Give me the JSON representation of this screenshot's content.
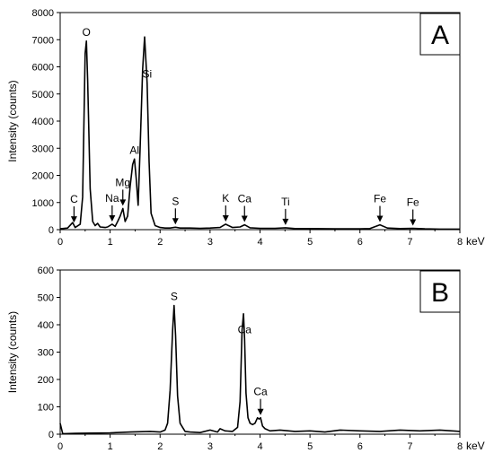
{
  "chart_data": [
    {
      "type": "line",
      "panel": "A",
      "ylabel": "Intensity (counts)",
      "xunit": "keV",
      "xlim": [
        0,
        8
      ],
      "ylim": [
        0,
        8000
      ],
      "xticks": [
        0,
        1,
        2,
        3,
        4,
        5,
        6,
        7,
        8
      ],
      "yticks": [
        0,
        1000,
        2000,
        3000,
        4000,
        5000,
        6000,
        7000,
        8000
      ],
      "grid": false,
      "series": [
        {
          "x": [
            0.0,
            0.15,
            0.25,
            0.3,
            0.4,
            0.45,
            0.5,
            0.525,
            0.55,
            0.6,
            0.65,
            0.7,
            0.75,
            0.8,
            0.9,
            0.95,
            1.04,
            1.1,
            1.15,
            1.2,
            1.254,
            1.3,
            1.35,
            1.4,
            1.45,
            1.487,
            1.52,
            1.56,
            1.6,
            1.65,
            1.69,
            1.74,
            1.78,
            1.82,
            1.9,
            2.0,
            2.1,
            2.2,
            2.307,
            2.4,
            2.6,
            2.8,
            3.0,
            3.2,
            3.31,
            3.45,
            3.6,
            3.69,
            3.8,
            4.0,
            4.3,
            4.51,
            4.7,
            5.0,
            5.5,
            6.0,
            6.2,
            6.4,
            6.55,
            6.8,
            7.06,
            7.3,
            7.6,
            8.0
          ],
          "y": [
            30,
            60,
            260,
            80,
            200,
            1200,
            6500,
            6950,
            5500,
            1500,
            300,
            150,
            230,
            100,
            80,
            100,
            200,
            120,
            300,
            500,
            780,
            300,
            500,
            1600,
            2400,
            2600,
            1900,
            900,
            3000,
            5900,
            7100,
            5400,
            2500,
            600,
            150,
            80,
            60,
            60,
            90,
            60,
            60,
            50,
            60,
            80,
            200,
            80,
            100,
            180,
            70,
            50,
            50,
            70,
            40,
            40,
            30,
            30,
            40,
            180,
            60,
            40,
            50,
            30,
            20,
            20
          ]
        }
      ],
      "peak_labels": [
        {
          "text": "C",
          "x": 0.277,
          "arrow": true
        },
        {
          "text": "O",
          "x": 0.525,
          "arrow": false
        },
        {
          "text": "Na",
          "x": 1.04,
          "arrow": true
        },
        {
          "text": "Mg",
          "x": 1.254,
          "arrow": true
        },
        {
          "text": "Al",
          "x": 1.487,
          "arrow": false
        },
        {
          "text": "Si",
          "x": 1.74,
          "arrow": false
        },
        {
          "text": "S",
          "x": 2.307,
          "arrow": true
        },
        {
          "text": "K",
          "x": 3.313,
          "arrow": true
        },
        {
          "text": "Ca",
          "x": 3.69,
          "arrow": true
        },
        {
          "text": "Ti",
          "x": 4.51,
          "arrow": true
        },
        {
          "text": "Fe",
          "x": 6.4,
          "arrow": true
        },
        {
          "text": "Fe",
          "x": 7.06,
          "arrow": true
        }
      ]
    },
    {
      "type": "line",
      "panel": "B",
      "ylabel": "Intensity (counts)",
      "xunit": "keV",
      "xlim": [
        0,
        8
      ],
      "ylim": [
        0,
        600
      ],
      "xticks": [
        0,
        1,
        2,
        3,
        4,
        5,
        6,
        7,
        8
      ],
      "yticks": [
        0,
        100,
        200,
        300,
        400,
        500,
        600
      ],
      "grid": false,
      "series": [
        {
          "x": [
            0.0,
            0.02,
            0.05,
            0.1,
            0.3,
            0.6,
            1.0,
            1.4,
            1.8,
            2.0,
            2.1,
            2.15,
            2.2,
            2.25,
            2.28,
            2.31,
            2.35,
            2.4,
            2.45,
            2.5,
            2.6,
            2.8,
            3.0,
            3.15,
            3.2,
            3.3,
            3.45,
            3.55,
            3.6,
            3.64,
            3.67,
            3.69,
            3.72,
            3.76,
            3.8,
            3.85,
            3.9,
            3.95,
            3.98,
            4.01,
            4.05,
            4.1,
            4.2,
            4.4,
            4.7,
            5.0,
            5.3,
            5.6,
            6.0,
            6.4,
            6.8,
            7.2,
            7.6,
            8.0
          ],
          "y": [
            40,
            25,
            2,
            2,
            3,
            4,
            5,
            8,
            10,
            8,
            15,
            40,
            160,
            380,
            470,
            360,
            140,
            40,
            25,
            10,
            8,
            6,
            15,
            8,
            20,
            12,
            10,
            25,
            120,
            380,
            440,
            350,
            150,
            60,
            40,
            35,
            40,
            60,
            55,
            60,
            30,
            20,
            12,
            15,
            10,
            12,
            8,
            15,
            12,
            10,
            15,
            12,
            15,
            10
          ]
        }
      ],
      "peak_labels": [
        {
          "text": "S",
          "x": 2.28,
          "arrow": false
        },
        {
          "text": "Ca",
          "x": 3.69,
          "arrow": false
        },
        {
          "text": "Ca",
          "x": 4.01,
          "arrow": true
        }
      ]
    }
  ]
}
